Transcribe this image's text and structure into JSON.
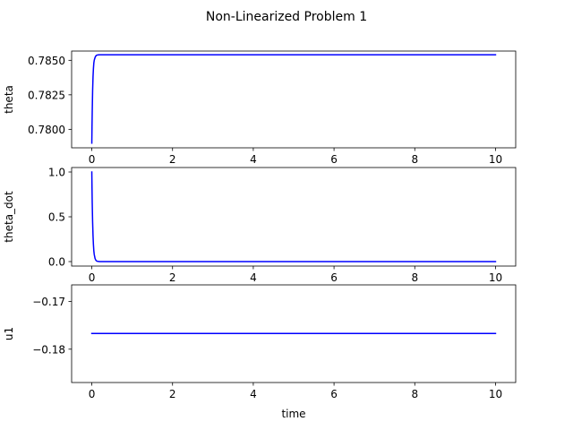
{
  "chart_data": {
    "title": "Non-Linearized Problem 1",
    "line_color": "#0000ff",
    "subplots": [
      {
        "type": "line",
        "ylabel": "theta",
        "xlabel": "",
        "xlim": [
          -0.5,
          10.5
        ],
        "ylim": [
          0.77866,
          0.78567
        ],
        "xticks": [
          {
            "value": 0,
            "label": "0"
          },
          {
            "value": 2,
            "label": "2"
          },
          {
            "value": 4,
            "label": "4"
          },
          {
            "value": 6,
            "label": "6"
          },
          {
            "value": 8,
            "label": "8"
          },
          {
            "value": 10,
            "label": "10"
          }
        ],
        "yticks": [
          {
            "value": 0.78,
            "label": "0.7800"
          },
          {
            "value": 0.7825,
            "label": "0.7825"
          },
          {
            "value": 0.785,
            "label": "0.7850"
          }
        ],
        "series": [
          {
            "x": [
              0,
              0.005,
              0.01,
              0.02,
              0.03,
              0.04,
              0.05,
              0.06,
              0.08,
              0.1,
              0.12,
              0.15,
              0.2,
              0.3,
              0.5,
              1,
              2,
              4,
              6,
              8,
              10
            ],
            "y": [
              0.779,
              0.7802,
              0.7812,
              0.7828,
              0.7838,
              0.7844,
              0.7848,
              0.785,
              0.7852,
              0.78532,
              0.78537,
              0.78539,
              0.7854,
              0.7854,
              0.7854,
              0.7854,
              0.7854,
              0.7854,
              0.7854,
              0.7854,
              0.7854
            ]
          }
        ]
      },
      {
        "type": "line",
        "ylabel": "theta_dot",
        "xlabel": "",
        "xlim": [
          -0.5,
          10.5
        ],
        "ylim": [
          -0.05,
          1.05
        ],
        "xticks": [
          {
            "value": 0,
            "label": "0"
          },
          {
            "value": 2,
            "label": "2"
          },
          {
            "value": 4,
            "label": "4"
          },
          {
            "value": 6,
            "label": "6"
          },
          {
            "value": 8,
            "label": "8"
          },
          {
            "value": 10,
            "label": "10"
          }
        ],
        "yticks": [
          {
            "value": 0,
            "label": "0.0"
          },
          {
            "value": 0.5,
            "label": "0.5"
          },
          {
            "value": 1,
            "label": "1.0"
          }
        ],
        "series": [
          {
            "x": [
              0,
              0.005,
              0.01,
              0.02,
              0.03,
              0.04,
              0.05,
              0.06,
              0.08,
              0.1,
              0.12,
              0.15,
              0.2,
              0.3,
              0.5,
              1,
              2,
              4,
              6,
              8,
              10
            ],
            "y": [
              1.0,
              0.82,
              0.66,
              0.44,
              0.29,
              0.19,
              0.12,
              0.08,
              0.035,
              0.015,
              0.006,
              0.002,
              0.0,
              0.0,
              0.0,
              0.0,
              0.0,
              0.0,
              0.0,
              0.0,
              0.0
            ]
          }
        ]
      },
      {
        "type": "line",
        "ylabel": "u1",
        "xlabel": "time",
        "xlim": [
          -0.5,
          10.5
        ],
        "ylim": [
          -0.187,
          -0.1665
        ],
        "xticks": [
          {
            "value": 0,
            "label": "0"
          },
          {
            "value": 2,
            "label": "2"
          },
          {
            "value": 4,
            "label": "4"
          },
          {
            "value": 6,
            "label": "6"
          },
          {
            "value": 8,
            "label": "8"
          },
          {
            "value": 10,
            "label": "10"
          }
        ],
        "yticks": [
          {
            "value": -0.17,
            "label": "−0.17"
          },
          {
            "value": -0.18,
            "label": "−0.18"
          }
        ],
        "series": [
          {
            "x": [
              0,
              10
            ],
            "y": [
              -0.1767,
              -0.1767
            ]
          }
        ]
      }
    ]
  }
}
